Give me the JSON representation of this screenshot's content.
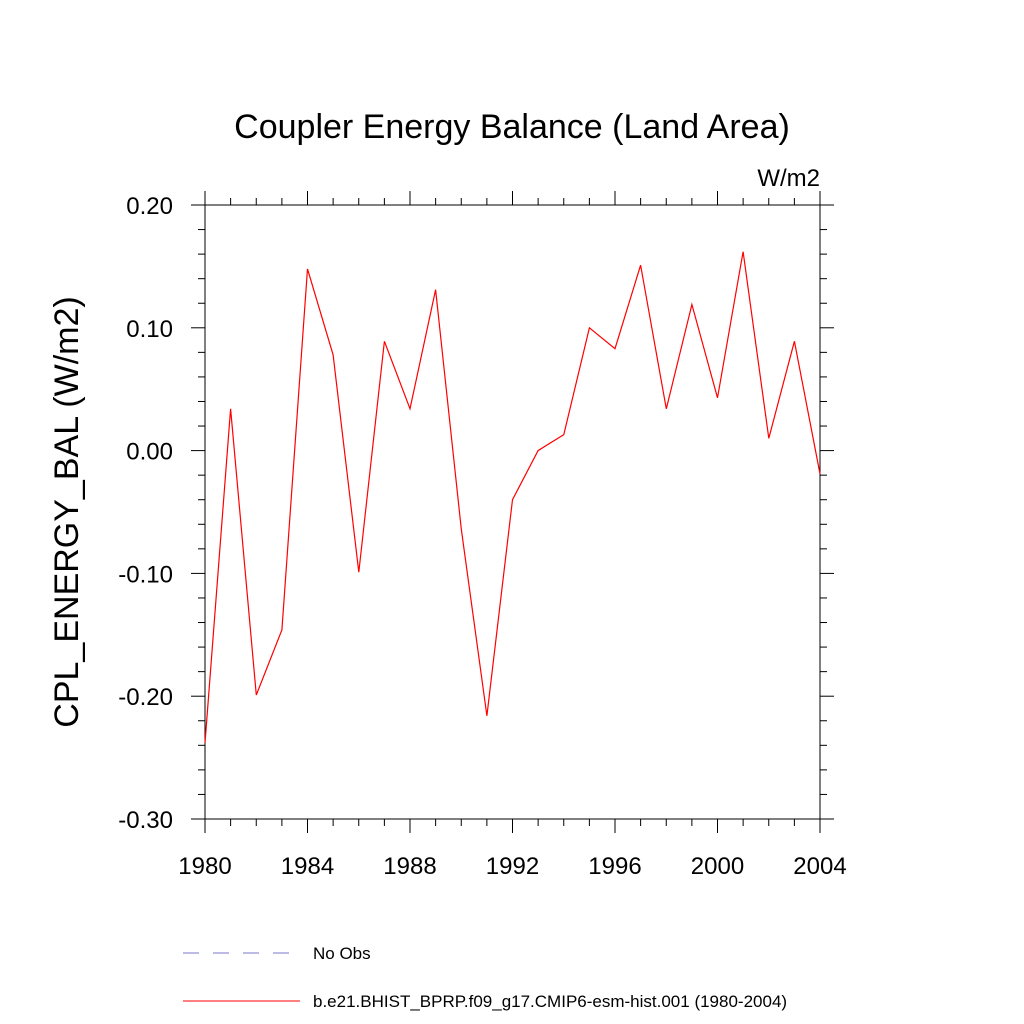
{
  "chart_data": {
    "type": "line",
    "title": "Coupler Energy Balance (Land Area)",
    "units": "W/m2",
    "xlabel": "",
    "ylabel": "CPL_ENERGY_BAL  (W/m2)",
    "xlim": [
      1980,
      2004
    ],
    "ylim": [
      -0.3,
      0.2
    ],
    "x_ticks": [
      1980,
      1984,
      1988,
      1992,
      1996,
      2000,
      2004
    ],
    "y_ticks": [
      0.2,
      0.1,
      0.0,
      -0.1,
      -0.2,
      -0.3
    ],
    "x_tick_labels": [
      "1980",
      "1984",
      "1988",
      "1992",
      "1996",
      "2000",
      "2004"
    ],
    "y_tick_labels": [
      "0.20",
      "0.10",
      "0.00",
      "-0.10",
      "-0.20",
      "-0.30"
    ],
    "grid": false,
    "legend_position": "bottom-left",
    "series": [
      {
        "name": "No Obs",
        "color": "#7777cc",
        "dashed": true,
        "x": [],
        "y": []
      },
      {
        "name": "b.e21.BHIST_BPRP.f09_g17.CMIP6-esm-hist.001 (1980-2004)",
        "color": "#ff0000",
        "dashed": false,
        "x": [
          1980,
          1981,
          1982,
          1983,
          1984,
          1985,
          1986,
          1987,
          1988,
          1989,
          1990,
          1991,
          1992,
          1993,
          1994,
          1995,
          1996,
          1997,
          1998,
          1999,
          2000,
          2001,
          2002,
          2003,
          2004
        ],
        "y": [
          -0.238,
          0.034,
          -0.199,
          -0.146,
          0.148,
          0.078,
          -0.099,
          0.089,
          0.034,
          0.131,
          -0.064,
          -0.216,
          -0.04,
          0.0,
          0.013,
          0.1,
          0.083,
          0.151,
          0.034,
          0.119,
          0.043,
          0.162,
          0.01,
          0.089,
          -0.019
        ]
      }
    ]
  }
}
